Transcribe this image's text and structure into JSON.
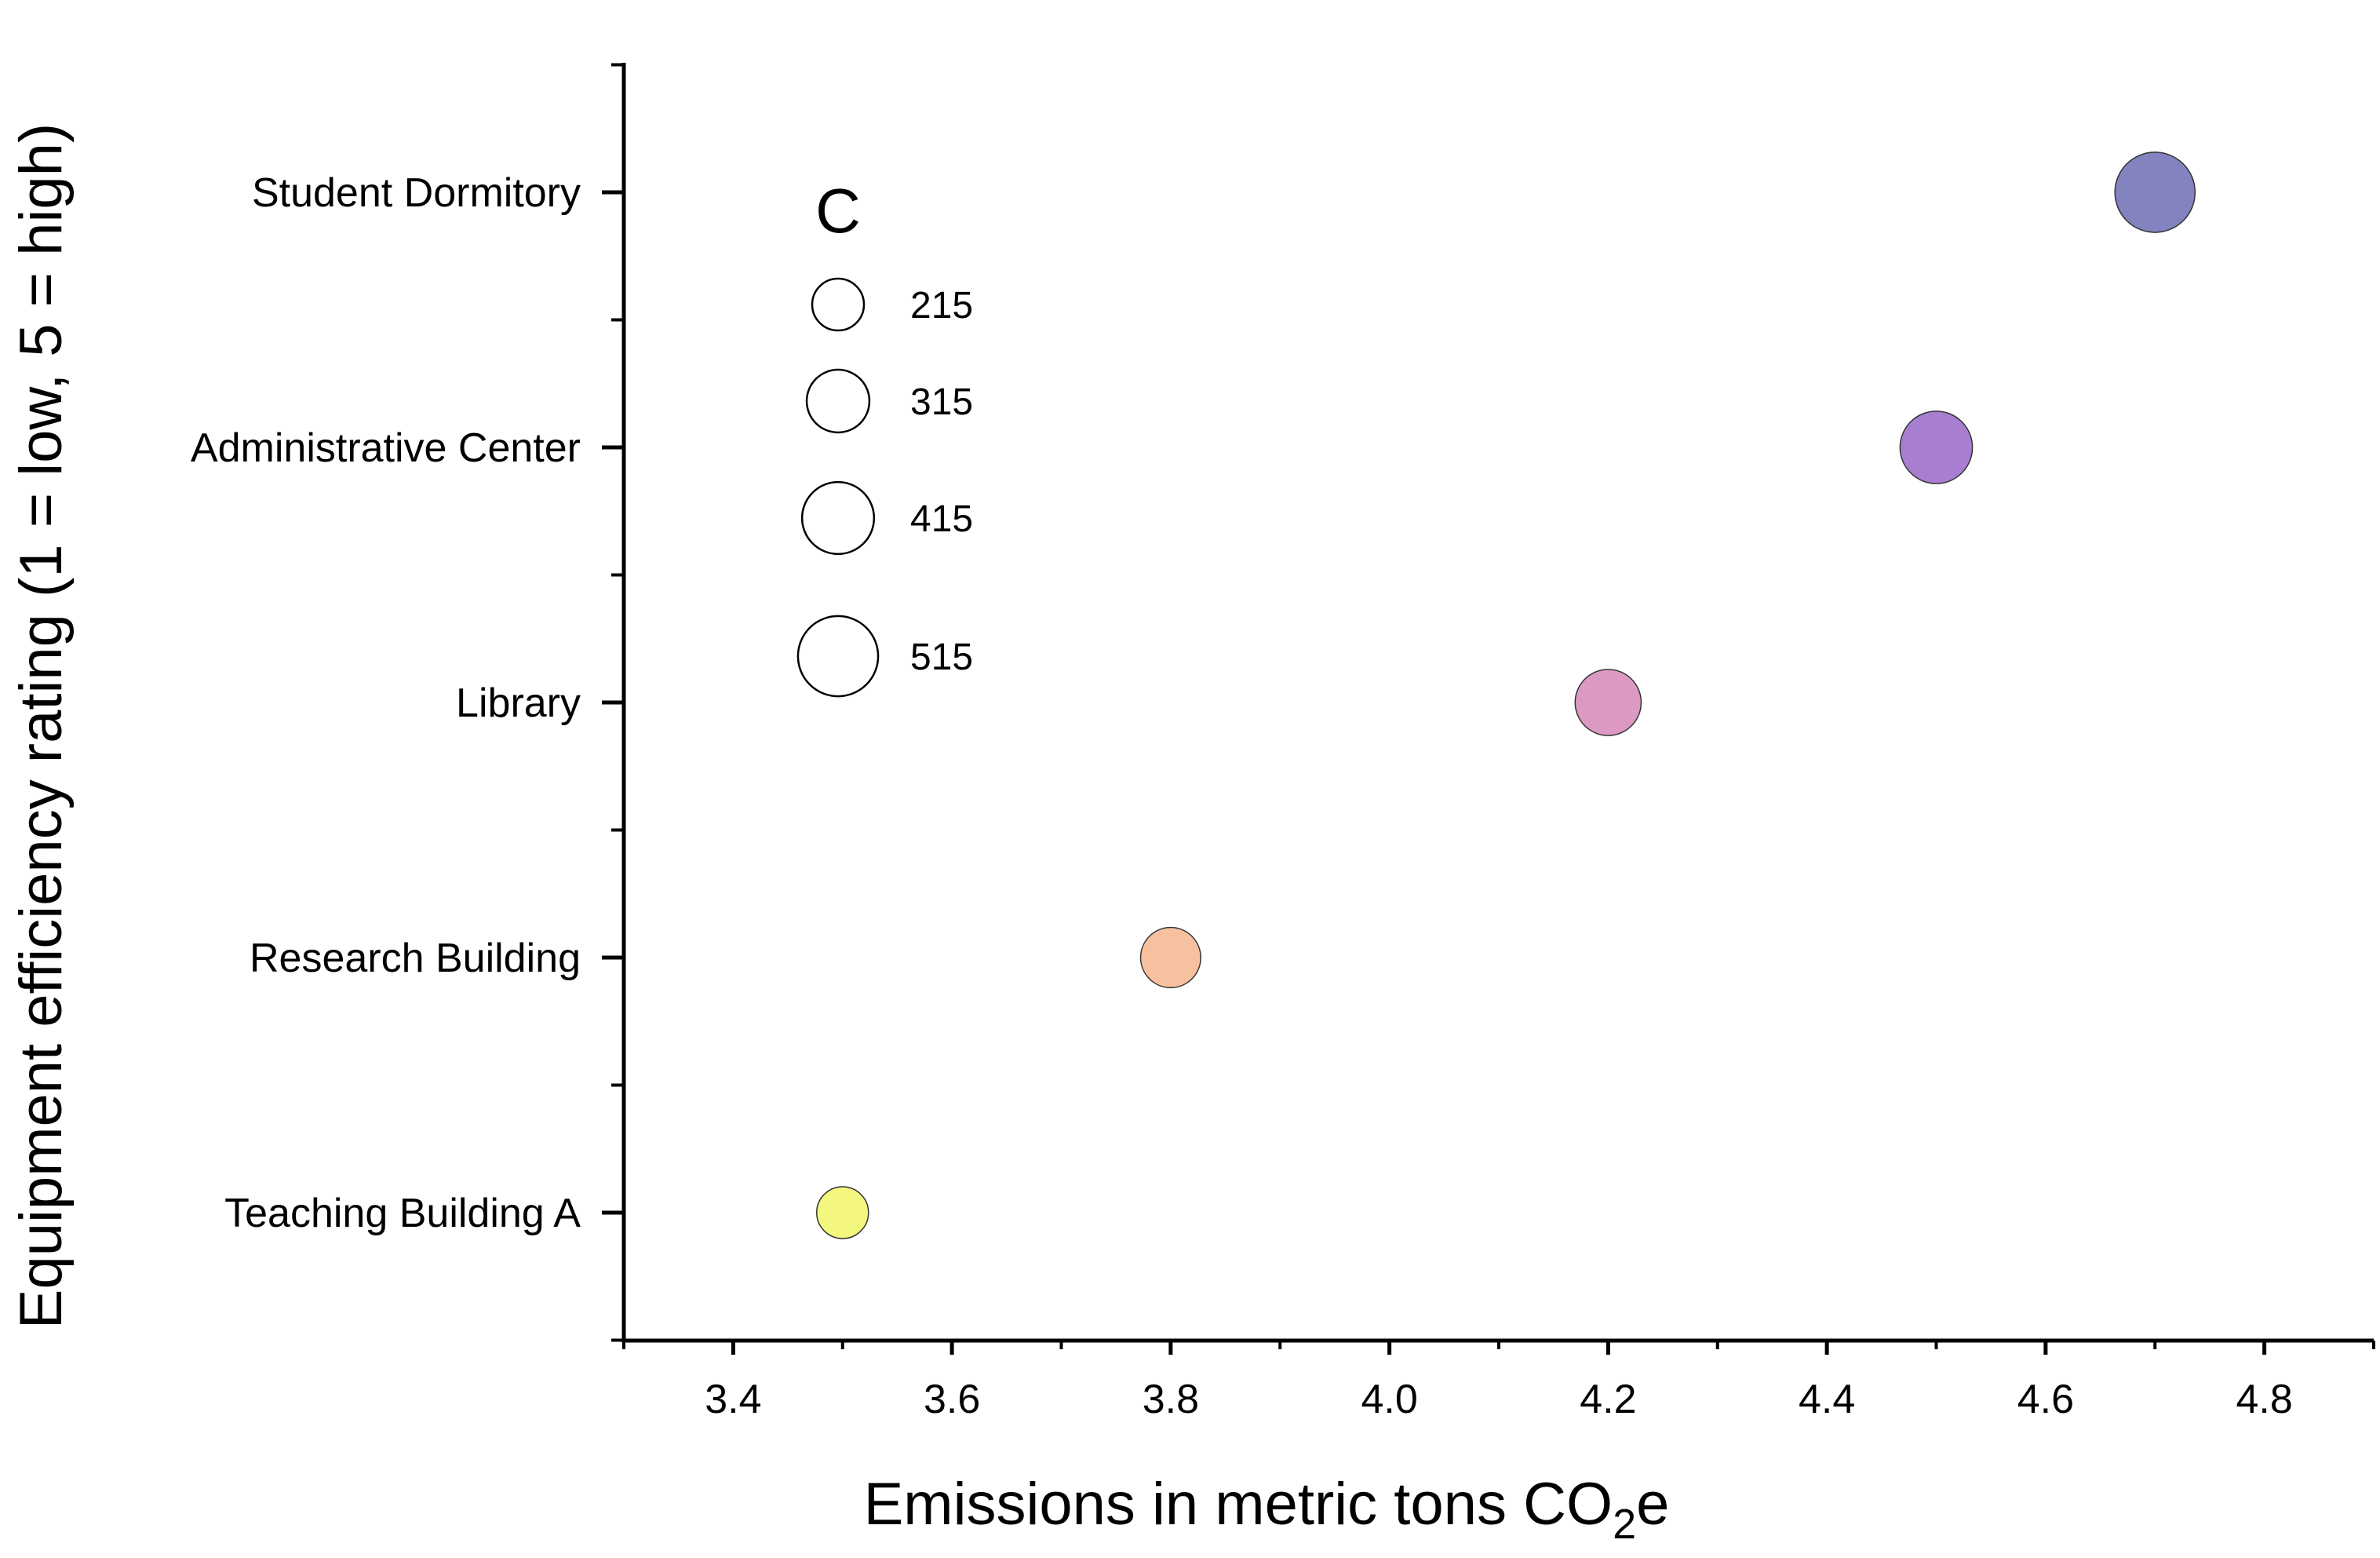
{
  "chart_data": {
    "type": "bubble",
    "xlabel_main": "Emissions in metric tons CO",
    "xlabel_sub": "2",
    "xlabel_tail": "e",
    "ylabel": "Equipment efficiency rating (1 = low, 5 = high)",
    "xlim": [
      3.3,
      4.9
    ],
    "x_ticks": [
      "3.4",
      "3.6",
      "3.8",
      "4.0",
      "4.2",
      "4.4",
      "4.6",
      "4.8"
    ],
    "categories": [
      "Teaching Building A",
      "Research Building",
      "Library",
      "Administrative Center",
      "Student Dormitory"
    ],
    "points": [
      {
        "category": "Teaching Building A",
        "x": 3.5,
        "y": 1,
        "size": 215,
        "color": "#f4f77d"
      },
      {
        "category": "Research Building",
        "x": 3.8,
        "y": 2,
        "size": 290,
        "color": "#f7c1a0"
      },
      {
        "category": "Library",
        "x": 4.2,
        "y": 3,
        "size": 350,
        "color": "#dc9ac2"
      },
      {
        "category": "Administrative Center",
        "x": 4.5,
        "y": 4,
        "size": 420,
        "color": "#a87ed1"
      },
      {
        "category": "Student Dormitory",
        "x": 4.7,
        "y": 5,
        "size": 515,
        "color": "#8383c0"
      }
    ],
    "size_legend": {
      "title": "C",
      "entries": [
        {
          "label": "215",
          "value": 215
        },
        {
          "label": "315",
          "value": 315
        },
        {
          "label": "415",
          "value": 415
        },
        {
          "label": "515",
          "value": 515
        }
      ]
    },
    "grid": false
  }
}
